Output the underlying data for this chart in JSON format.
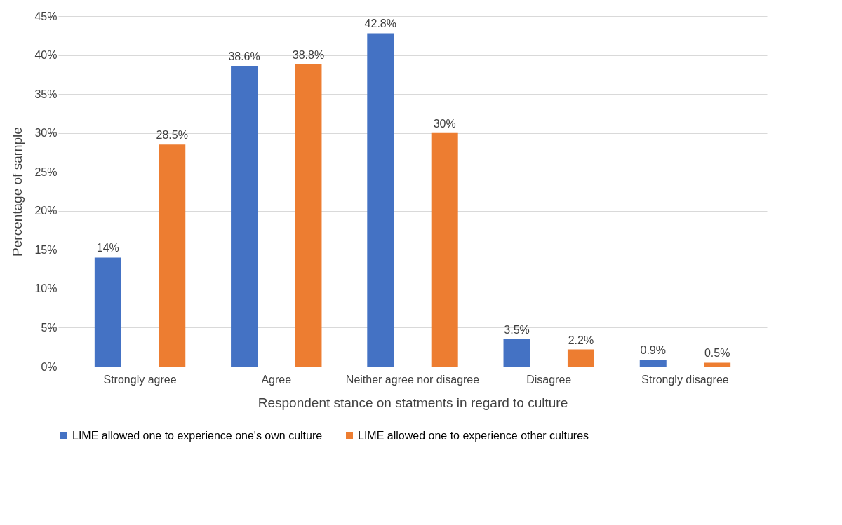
{
  "chart_data": {
    "type": "bar",
    "xlabel": "Respondent stance on statments in regard to culture",
    "ylabel": "Percentage of sample",
    "categories": [
      "Strongly agree",
      "Agree",
      "Neither agree nor disagree",
      "Disagree",
      "Strongly disagree"
    ],
    "series": [
      {
        "name": "LIME allowed one to experience one's own culture",
        "color": "#4472c4",
        "values": [
          14,
          38.6,
          42.8,
          3.5,
          0.9
        ],
        "value_labels": [
          "14%",
          "38.6%",
          "42.8%",
          "3.5%",
          "0.9%"
        ]
      },
      {
        "name": "LIME allowed one to experience other cultures",
        "color": "#ed7d31",
        "values": [
          28.5,
          38.8,
          30,
          2.2,
          0.5
        ],
        "value_labels": [
          "28.5%",
          "38.8%",
          "30%",
          "2.2%",
          "0.5%"
        ]
      }
    ],
    "ylim": [
      0,
      45
    ],
    "yticks": [
      {
        "value": 0,
        "label": "0%"
      },
      {
        "value": 5,
        "label": "5%"
      },
      {
        "value": 10,
        "label": "10%"
      },
      {
        "value": 15,
        "label": "15%"
      },
      {
        "value": 20,
        "label": "20%"
      },
      {
        "value": 25,
        "label": "25%"
      },
      {
        "value": 30,
        "label": "30%"
      },
      {
        "value": 35,
        "label": "35%"
      },
      {
        "value": 40,
        "label": "40%"
      },
      {
        "value": 45,
        "label": "45%"
      }
    ],
    "grid": "y",
    "legend": "bottom"
  }
}
